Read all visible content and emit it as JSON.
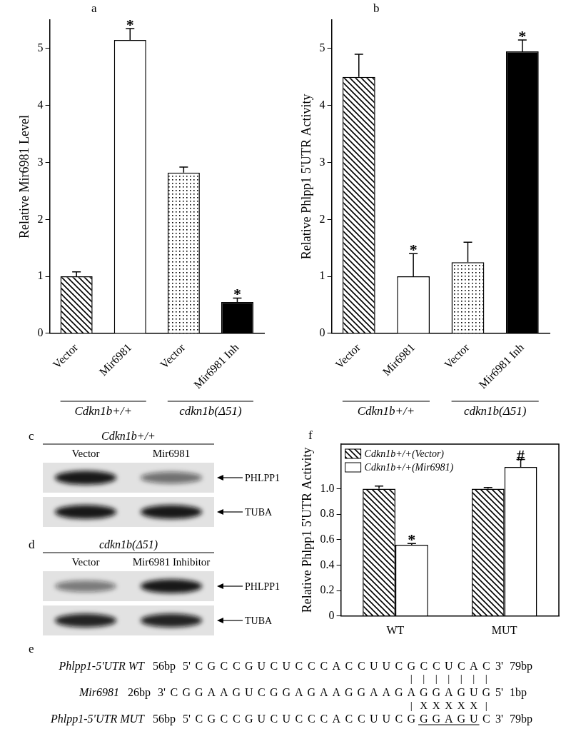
{
  "chart_data": [
    {
      "panel": "a",
      "type": "bar",
      "y_label": "Relative Mir6981 Level",
      "categories": [
        "Vector",
        "Mir6981",
        "Vector",
        "Mir6981 Inh"
      ],
      "values": [
        1,
        5.15,
        2.82,
        0.55
      ],
      "errors": [
        0.08,
        0.2,
        0.1,
        0.07
      ],
      "colors": [
        "hatched",
        "#ffffff",
        "dotted",
        "#000000"
      ],
      "annotations": [
        {
          "index": 1,
          "text": "*"
        },
        {
          "index": 3,
          "text": "*"
        }
      ],
      "groups": [
        "Cdkn1b+/+",
        "cdkn1b(Δ51)"
      ],
      "ylim": [
        0,
        5.5
      ],
      "yticks": [
        0,
        1,
        2,
        3,
        4,
        5
      ],
      "grid": false
    },
    {
      "panel": "b",
      "type": "bar",
      "y_label": "Relative Phlpp1 5'UTR Activity",
      "categories": [
        "Vector",
        "Mir6981",
        "Vector",
        "Mir6981 Inh"
      ],
      "values": [
        4.5,
        1,
        1.25,
        4.95
      ],
      "errors": [
        0.4,
        0.4,
        0.35,
        0.2
      ],
      "colors": [
        "hatched",
        "#ffffff",
        "dotted",
        "#000000"
      ],
      "annotations": [
        {
          "index": 1,
          "text": "*"
        },
        {
          "index": 3,
          "text": "*"
        }
      ],
      "groups": [
        "Cdkn1b+/+",
        "cdkn1b(Δ51)"
      ],
      "ylim": [
        0,
        5.5
      ],
      "yticks": [
        0,
        1,
        2,
        3,
        4,
        5
      ],
      "grid": false
    },
    {
      "panel": "f",
      "type": "bar",
      "y_label": "Relative Phlpp1 5'UTR Activity",
      "categories": [
        "WT",
        "MUT"
      ],
      "series": [
        {
          "name": "Cdkn1b+/+(Vector)",
          "color": "hatched",
          "values": [
            1,
            1
          ],
          "errors": [
            0.02,
            0.01
          ]
        },
        {
          "name": "Cdkn1b+/+(Mir6981)",
          "color": "#ffffff",
          "values": [
            0.56,
            1.17
          ],
          "errors": [
            0.01,
            0.06
          ],
          "annotations": [
            {
              "index": 0,
              "text": "*"
            },
            {
              "index": 1,
              "text": "#"
            }
          ]
        }
      ],
      "legend": "upper left",
      "ylim": [
        0,
        1.35
      ],
      "yticks": [
        0,
        0.2,
        0.4,
        0.6,
        0.8,
        {
          "value": 1,
          "label": "1.0"
        }
      ],
      "grid": false
    }
  ],
  "blots": [
    {
      "panel": "c",
      "header": "Cdkn1b+/+",
      "lanes": [
        "Vector",
        "Mir6981"
      ],
      "bands": [
        {
          "name": "PHLPP1",
          "intensity": [
            0.95,
            0.55
          ]
        },
        {
          "name": "TUBA",
          "intensity": [
            0.95,
            0.95
          ]
        }
      ]
    },
    {
      "panel": "d",
      "header": "cdkn1b(Δ51)",
      "lanes": [
        "Vector",
        "Mir6981 Inhibitor"
      ],
      "bands": [
        {
          "name": "PHLPP1",
          "intensity": [
            0.5,
            0.95
          ]
        },
        {
          "name": "TUBA",
          "intensity": [
            0.9,
            0.9
          ]
        }
      ]
    }
  ],
  "alignment": {
    "panel": "e",
    "rows": [
      {
        "label": "Phlpp1-5'UTR WT",
        "start": "56bp",
        "left_end": "5'",
        "sequence": "CGCCGUCUCCCACCUUCGCCUCAC",
        "right_end": "3'",
        "end": "79bp"
      },
      {
        "label": "Mir6981",
        "start": "26bp",
        "left_end": "3'",
        "sequence": "CGGAAGUCGGAGAAGGAAGAGGAGUG",
        "right_end": "5'",
        "end": "1bp"
      },
      {
        "label": "Phlpp1-5'UTR MUT",
        "start": "56bp",
        "left_end": "5'",
        "sequence": "CGCCGUCUCCCACCUUCGGGAGUC",
        "right_end": "3'",
        "end": "79bp"
      }
    ],
    "links": [
      "|||||||",
      "|XXXXX|"
    ],
    "underlined": "GGAGU"
  }
}
